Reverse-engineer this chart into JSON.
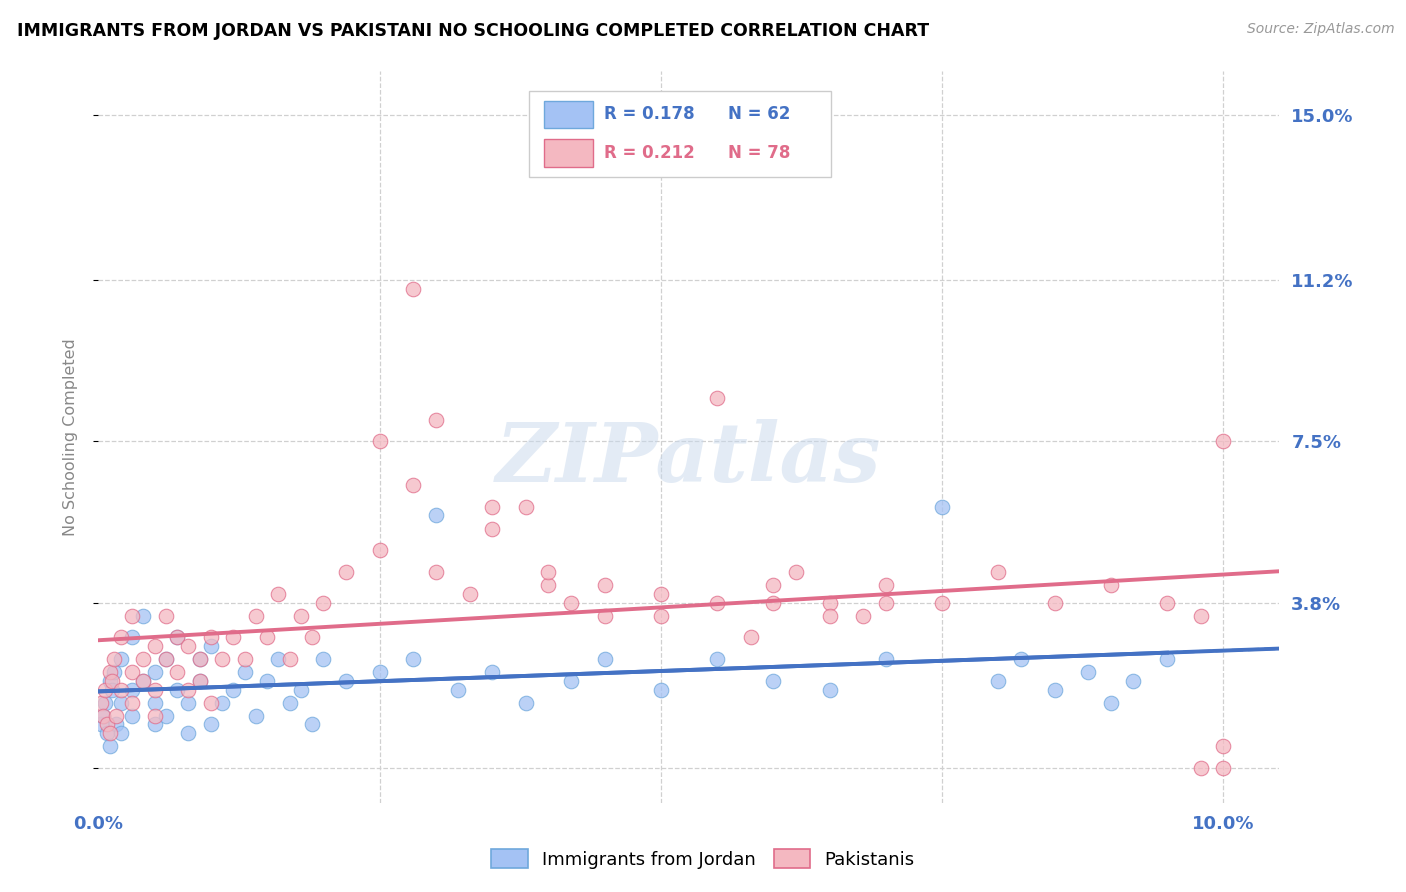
{
  "title": "IMMIGRANTS FROM JORDAN VS PAKISTANI NO SCHOOLING COMPLETED CORRELATION CHART",
  "source": "Source: ZipAtlas.com",
  "ylabel": "No Schooling Completed",
  "xlim": [
    0.0,
    0.105
  ],
  "ylim": [
    -0.008,
    0.16
  ],
  "ytick_vals": [
    0.0,
    0.038,
    0.075,
    0.112,
    0.15
  ],
  "ytick_labels_right": [
    "",
    "3.8%",
    "7.5%",
    "11.2%",
    "15.0%"
  ],
  "xtick_vals": [
    0.0,
    0.025,
    0.05,
    0.075,
    0.1
  ],
  "xtick_labels": [
    "0.0%",
    "",
    "",
    "",
    "10.0%"
  ],
  "grid_color": "#d0d0d0",
  "color_jordan": "#a4c2f4",
  "color_jordan_edge": "#6fa8dc",
  "color_jordan_line": "#4472c4",
  "color_pakistan": "#f4b8c1",
  "color_pakistan_edge": "#e06c8a",
  "color_pakistan_line": "#e06c8a",
  "color_axis_labels": "#4472c4",
  "legend_r1": "R = 0.178",
  "legend_n1": "N = 62",
  "legend_r2": "R = 0.212",
  "legend_n2": "N = 78",
  "jordan_x": [
    0.0002,
    0.0004,
    0.0006,
    0.0008,
    0.001,
    0.001,
    0.0012,
    0.0014,
    0.0016,
    0.002,
    0.002,
    0.002,
    0.003,
    0.003,
    0.003,
    0.004,
    0.004,
    0.005,
    0.005,
    0.005,
    0.006,
    0.006,
    0.007,
    0.007,
    0.008,
    0.008,
    0.009,
    0.009,
    0.01,
    0.01,
    0.011,
    0.012,
    0.013,
    0.014,
    0.015,
    0.016,
    0.017,
    0.018,
    0.019,
    0.02,
    0.022,
    0.025,
    0.028,
    0.03,
    0.032,
    0.035,
    0.038,
    0.042,
    0.045,
    0.05,
    0.055,
    0.06,
    0.065,
    0.07,
    0.075,
    0.08,
    0.082,
    0.085,
    0.088,
    0.09,
    0.092,
    0.095
  ],
  "jordan_y": [
    0.01,
    0.012,
    0.015,
    0.008,
    0.02,
    0.005,
    0.018,
    0.022,
    0.01,
    0.015,
    0.025,
    0.008,
    0.018,
    0.03,
    0.012,
    0.02,
    0.035,
    0.015,
    0.022,
    0.01,
    0.025,
    0.012,
    0.03,
    0.018,
    0.015,
    0.008,
    0.02,
    0.025,
    0.01,
    0.028,
    0.015,
    0.018,
    0.022,
    0.012,
    0.02,
    0.025,
    0.015,
    0.018,
    0.01,
    0.025,
    0.02,
    0.022,
    0.025,
    0.058,
    0.018,
    0.022,
    0.015,
    0.02,
    0.025,
    0.018,
    0.025,
    0.02,
    0.018,
    0.025,
    0.06,
    0.02,
    0.025,
    0.018,
    0.022,
    0.015,
    0.02,
    0.025
  ],
  "pakistan_x": [
    0.0002,
    0.0004,
    0.0006,
    0.0008,
    0.001,
    0.001,
    0.0012,
    0.0014,
    0.0016,
    0.002,
    0.002,
    0.003,
    0.003,
    0.003,
    0.004,
    0.004,
    0.005,
    0.005,
    0.005,
    0.006,
    0.006,
    0.007,
    0.007,
    0.008,
    0.008,
    0.009,
    0.009,
    0.01,
    0.01,
    0.011,
    0.012,
    0.013,
    0.014,
    0.015,
    0.016,
    0.017,
    0.018,
    0.019,
    0.02,
    0.022,
    0.025,
    0.028,
    0.03,
    0.033,
    0.035,
    0.038,
    0.04,
    0.045,
    0.05,
    0.055,
    0.06,
    0.062,
    0.065,
    0.068,
    0.07,
    0.075,
    0.08,
    0.085,
    0.09,
    0.095,
    0.098,
    0.1,
    0.1,
    0.1,
    0.098,
    0.025,
    0.03,
    0.028,
    0.035,
    0.04,
    0.042,
    0.045,
    0.05,
    0.055,
    0.058,
    0.06,
    0.065,
    0.07
  ],
  "pakistan_y": [
    0.015,
    0.012,
    0.018,
    0.01,
    0.022,
    0.008,
    0.02,
    0.025,
    0.012,
    0.018,
    0.03,
    0.022,
    0.015,
    0.035,
    0.02,
    0.025,
    0.018,
    0.012,
    0.028,
    0.025,
    0.035,
    0.022,
    0.03,
    0.018,
    0.028,
    0.025,
    0.02,
    0.03,
    0.015,
    0.025,
    0.03,
    0.025,
    0.035,
    0.03,
    0.04,
    0.025,
    0.035,
    0.03,
    0.038,
    0.045,
    0.05,
    0.11,
    0.045,
    0.04,
    0.055,
    0.06,
    0.042,
    0.035,
    0.04,
    0.085,
    0.038,
    0.045,
    0.038,
    0.035,
    0.042,
    0.038,
    0.045,
    0.038,
    0.042,
    0.038,
    0.035,
    0.075,
    0.005,
    0.0,
    0.0,
    0.075,
    0.08,
    0.065,
    0.06,
    0.045,
    0.038,
    0.042,
    0.035,
    0.038,
    0.03,
    0.042,
    0.035,
    0.038
  ]
}
